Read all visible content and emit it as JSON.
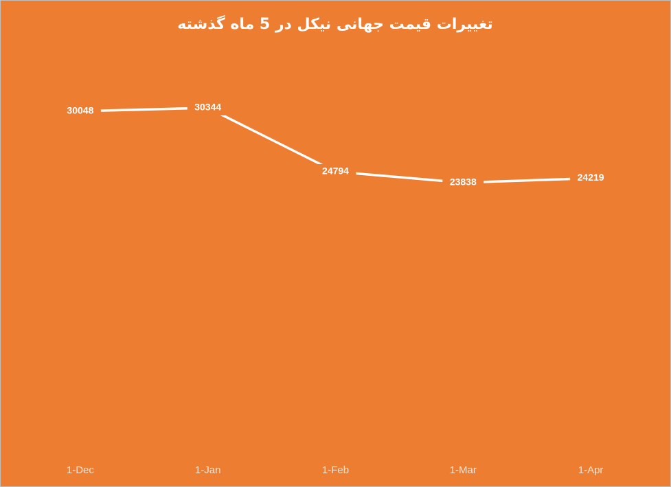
{
  "chart_data": {
    "type": "line",
    "title": "تغییرات قیمت جهانی نیکل در 5 ماه گذشته",
    "categories": [
      "1-Dec",
      "1-Jan",
      "1-Feb",
      "1-Mar",
      "1-Apr"
    ],
    "values": [
      30048,
      30344,
      24794,
      23838,
      24219
    ],
    "color": "#ffffff",
    "background": "#ed7d31",
    "drop_lines": true,
    "data_labels": true
  }
}
